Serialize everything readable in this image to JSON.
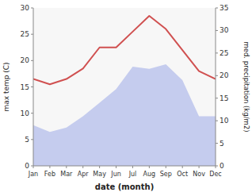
{
  "chart_data": {
    "type": "line",
    "xlabel": "date (month)",
    "ylabel": "max temp (C)",
    "y2label": "med. precipitation (kg/m2)",
    "categories": [
      "Jan",
      "Feb",
      "Mar",
      "Apr",
      "May",
      "Jun",
      "Jul",
      "Aug",
      "Sep",
      "Oct",
      "Nov",
      "Dec"
    ],
    "series": [
      {
        "type": "area",
        "axis": "y2",
        "color": "#c5ccee",
        "values": [
          9.0,
          7.5,
          8.5,
          11.0,
          14.0,
          17.0,
          22.0,
          21.5,
          22.5,
          19.0,
          11.0,
          11.0
        ]
      },
      {
        "type": "line",
        "color": "#d05050",
        "values": [
          16.5,
          15.5,
          16.5,
          18.5,
          22.5,
          22.5,
          25.5,
          28.5,
          26.0,
          22.0,
          18.0,
          16.5
        ]
      }
    ],
    "ylim": [
      0,
      30
    ],
    "yticks": [
      0,
      5,
      10,
      15,
      20,
      25,
      30
    ],
    "y2lim": [
      0,
      35
    ],
    "y2ticks": [
      0,
      5,
      10,
      15,
      20,
      25,
      30,
      35
    ],
    "grid": false
  }
}
